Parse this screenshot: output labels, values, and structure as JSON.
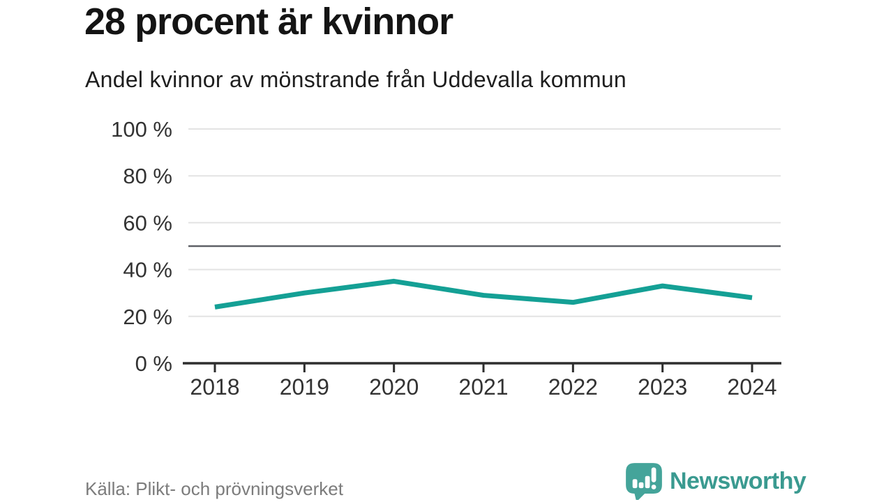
{
  "header": {
    "title": "28 procent är kvinnor",
    "subtitle": "Andel kvinnor av mönstrande från Uddevalla kommun"
  },
  "footer": {
    "source": "Källa: Plikt- och prövningsverket",
    "brand_name": "Newsworthy"
  },
  "icons": {
    "brand_logo": "speech-bubble-with-bar-chart-and-exclamation-icon"
  },
  "chart_data": {
    "type": "line",
    "title": "28 procent är kvinnor",
    "subtitle": "Andel kvinnor av mönstrande från Uddevalla kommun",
    "x": [
      2018,
      2019,
      2020,
      2021,
      2022,
      2023,
      2024
    ],
    "series": [
      {
        "name": "Andel kvinnor av mönstrande",
        "values": [
          24,
          30,
          35,
          29,
          26,
          33,
          28
        ]
      }
    ],
    "ylim": [
      0,
      100
    ],
    "yticks": [
      0,
      20,
      40,
      60,
      80,
      100
    ],
    "ytick_suffix": " %",
    "reference_line": 50,
    "grid": true,
    "legend": "none",
    "colors": {
      "line": "#14a095",
      "reference": "#5e6066",
      "grid": "#e3e3e3",
      "axis": "#2e2e2e",
      "tick_text": "#333333"
    }
  },
  "colors": {
    "accent": "#14a095",
    "brand": "#3a9a90",
    "title_text": "#141414",
    "muted_text": "#7c7c7c",
    "background": "#ffffff"
  }
}
